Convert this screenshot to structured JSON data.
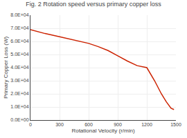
{
  "chart_data": {
    "type": "line",
    "title": "Fig. 2 Rotation speed versus primary copper loss",
    "xlabel": "Rotational Velocity (r/min)",
    "ylabel": "Primary Copper Loss (W)",
    "x": [
      0,
      150,
      300,
      450,
      600,
      700,
      800,
      900,
      1000,
      1100,
      1200,
      1280,
      1350,
      1400,
      1450,
      1480
    ],
    "values": [
      69000,
      66000,
      63500,
      61000,
      58500,
      56000,
      53000,
      49000,
      45000,
      41500,
      40000,
      30000,
      20000,
      14000,
      9000,
      8000
    ],
    "color": "#cc2200",
    "xlim": [
      0,
      1500
    ],
    "ylim": [
      0,
      80000
    ],
    "xticks": [
      0,
      300,
      600,
      900,
      1200,
      1500
    ],
    "yticks": [
      {
        "value": 0,
        "label": "0.0E+00"
      },
      {
        "value": 10000,
        "label": "1.0E+04"
      },
      {
        "value": 20000,
        "label": "2.0E+04"
      },
      {
        "value": 30000,
        "label": "3.0E+04"
      },
      {
        "value": 40000,
        "label": "4.0E+04"
      },
      {
        "value": 50000,
        "label": "5.0E+04"
      },
      {
        "value": 60000,
        "label": "6.0E+04"
      },
      {
        "value": 70000,
        "label": "7.0E+04"
      },
      {
        "value": 80000,
        "label": "8.0E+04"
      }
    ],
    "grid": true
  }
}
